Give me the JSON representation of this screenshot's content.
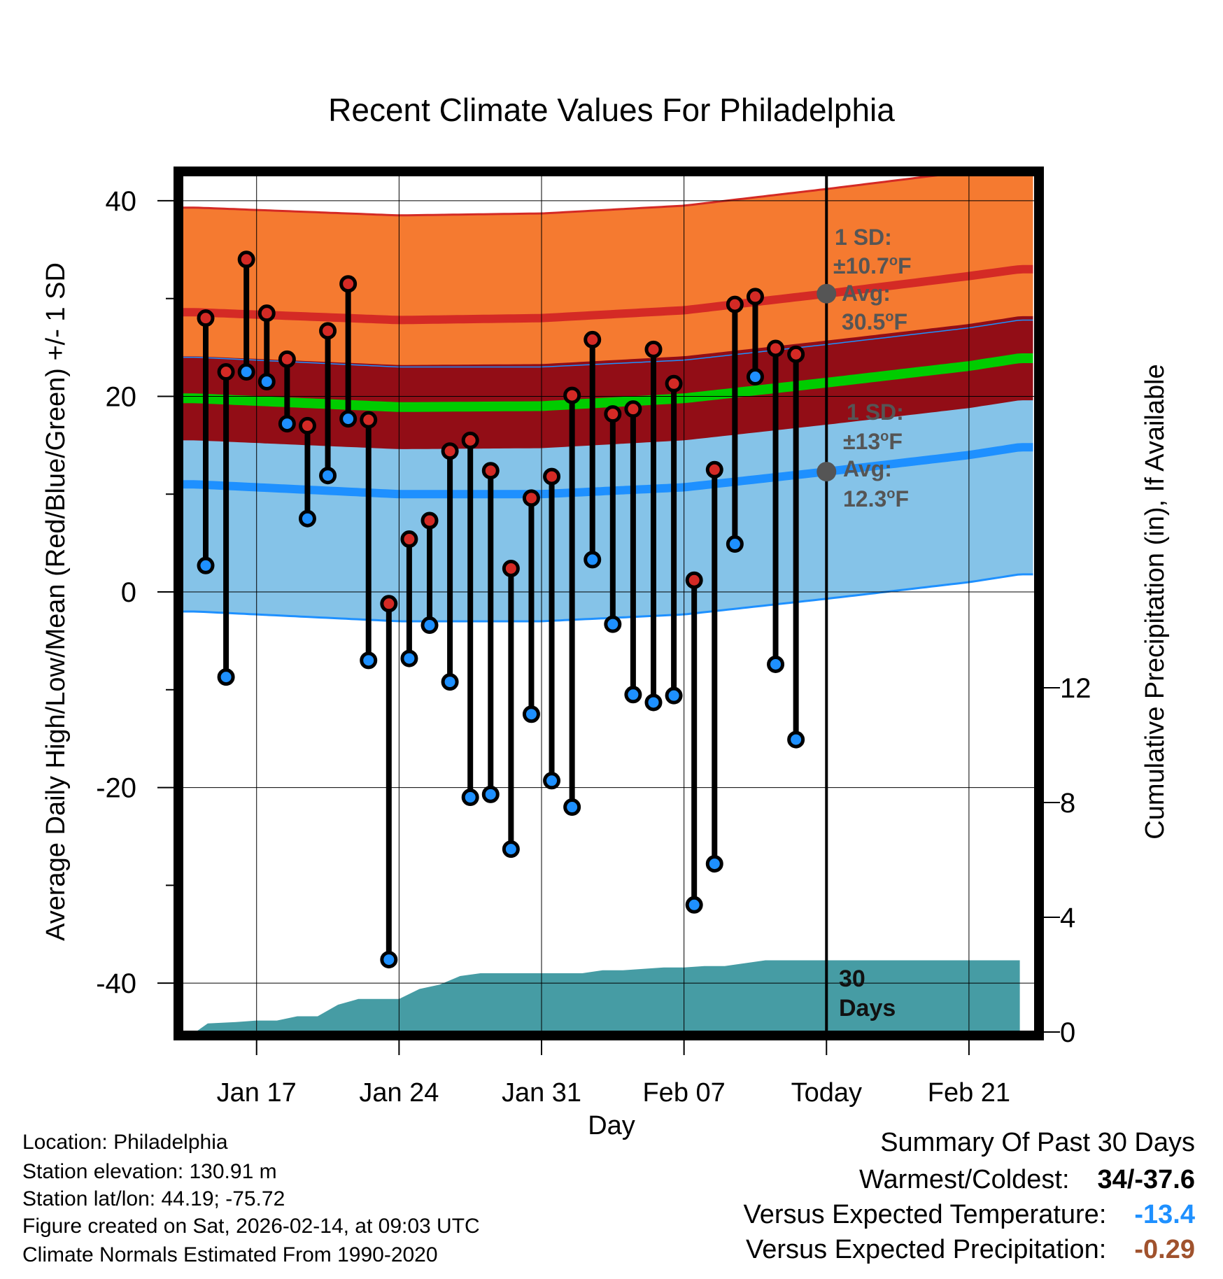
{
  "chart_data": {
    "type": "line",
    "title": "Recent Climate Values For Philadelphia",
    "xlabel": "Day",
    "ylabel": "Average Daily High/Low/Mean (Red/Blue/Green) +/- 1 SD",
    "y2label": "Cumulative Precipitation (in), If Available",
    "xlim": [
      -0.6,
      41.2
    ],
    "ylim": [
      -45,
      43
    ],
    "y2lim": [
      0,
      30
    ],
    "x_ticks": [
      {
        "x": 3,
        "label": "Jan 17"
      },
      {
        "x": 10,
        "label": "Jan 24"
      },
      {
        "x": 17,
        "label": "Jan 31"
      },
      {
        "x": 24,
        "label": "Feb 07"
      },
      {
        "x": 31,
        "label": "Today"
      },
      {
        "x": 38,
        "label": "Feb 21"
      }
    ],
    "y_ticks": [
      40,
      20,
      0,
      -20,
      -40
    ],
    "y2_ticks": [
      0,
      4,
      8,
      12
    ],
    "grid": true,
    "today_x": 31,
    "daily_high": [
      28.0,
      22.5,
      34.0,
      28.5,
      23.8,
      17.0,
      26.7,
      31.5,
      17.6,
      -1.2,
      5.4,
      7.3,
      14.4,
      15.5,
      12.4,
      2.4,
      9.6,
      11.8,
      20.1,
      25.8,
      18.2,
      18.7,
      24.8,
      21.3,
      1.2,
      12.5,
      29.4,
      30.2,
      24.9,
      24.3
    ],
    "daily_low": [
      2.7,
      -8.7,
      22.5,
      21.5,
      17.2,
      7.5,
      11.9,
      17.7,
      -7.0,
      -37.6,
      -6.8,
      -3.4,
      -9.2,
      -21.0,
      -20.7,
      -26.3,
      -12.5,
      -19.3,
      -22.0,
      3.3,
      -3.3,
      -10.5,
      -11.3,
      -10.6,
      -32.0,
      -27.8,
      4.9,
      22.0,
      -7.4,
      -15.1
    ],
    "normal_high": [
      {
        "x": 0,
        "y": 28.6
      },
      {
        "x": 10,
        "y": 27.8
      },
      {
        "x": 17,
        "y": 28.0
      },
      {
        "x": 24,
        "y": 28.8
      },
      {
        "x": 31,
        "y": 30.5
      },
      {
        "x": 38,
        "y": 32.3
      },
      {
        "x": 40.5,
        "y": 33.0
      }
    ],
    "normal_low": [
      {
        "x": 0,
        "y": 11.0
      },
      {
        "x": 10,
        "y": 10.0
      },
      {
        "x": 17,
        "y": 10.0
      },
      {
        "x": 24,
        "y": 10.7
      },
      {
        "x": 31,
        "y": 12.3
      },
      {
        "x": 38,
        "y": 14.0
      },
      {
        "x": 40.5,
        "y": 14.8
      }
    ],
    "normal_mean": [
      {
        "x": 0,
        "y": 19.8
      },
      {
        "x": 10,
        "y": 18.9
      },
      {
        "x": 17,
        "y": 19.0
      },
      {
        "x": 24,
        "y": 19.8
      },
      {
        "x": 31,
        "y": 21.4
      },
      {
        "x": 38,
        "y": 23.1
      },
      {
        "x": 40.5,
        "y": 23.9
      }
    ],
    "sd_high": 10.7,
    "sd_low": 13.0,
    "sd_mean": 1.0,
    "cumulative_precip": [
      {
        "x": 0,
        "y": 0.0
      },
      {
        "x": 0.6,
        "y": 0.3
      },
      {
        "x": 2,
        "y": 0.35
      },
      {
        "x": 3,
        "y": 0.4
      },
      {
        "x": 4,
        "y": 0.4
      },
      {
        "x": 5,
        "y": 0.55
      },
      {
        "x": 6,
        "y": 0.55
      },
      {
        "x": 7,
        "y": 0.95
      },
      {
        "x": 8,
        "y": 1.15
      },
      {
        "x": 9,
        "y": 1.15
      },
      {
        "x": 10,
        "y": 1.15
      },
      {
        "x": 11,
        "y": 1.5
      },
      {
        "x": 12,
        "y": 1.65
      },
      {
        "x": 13,
        "y": 1.95
      },
      {
        "x": 14,
        "y": 2.05
      },
      {
        "x": 15,
        "y": 2.05
      },
      {
        "x": 16,
        "y": 2.05
      },
      {
        "x": 17,
        "y": 2.05
      },
      {
        "x": 18,
        "y": 2.05
      },
      {
        "x": 19,
        "y": 2.05
      },
      {
        "x": 20,
        "y": 2.15
      },
      {
        "x": 21,
        "y": 2.15
      },
      {
        "x": 22,
        "y": 2.2
      },
      {
        "x": 23,
        "y": 2.25
      },
      {
        "x": 24,
        "y": 2.25
      },
      {
        "x": 25,
        "y": 2.3
      },
      {
        "x": 26,
        "y": 2.3
      },
      {
        "x": 27,
        "y": 2.4
      },
      {
        "x": 28,
        "y": 2.5
      },
      {
        "x": 29,
        "y": 2.5
      },
      {
        "x": 30,
        "y": 2.5
      },
      {
        "x": 31,
        "y": 2.5
      },
      {
        "x": 40.5,
        "y": 2.5
      }
    ],
    "annotations": {
      "high_sd_line1": "1 SD:",
      "high_sd_line2": "±10.7",
      "high_avg_line1": "Avg:",
      "high_avg_line2": "30.5",
      "low_sd_line1": "1 SD:",
      "low_sd_line2": "±13",
      "low_avg_line1": "Avg:",
      "low_avg_line2": "12.3",
      "deg_sup": "o",
      "deg_unit": "F",
      "days_line1": "30",
      "days_line2": "Days"
    },
    "colors": {
      "high_band": "#f57a30",
      "high_line": "#d42a25",
      "mean_band": "#920d16",
      "mean_line": "#00cc00",
      "low_band": "#85c3e8",
      "low_line": "#1e90ff",
      "precip": "#469ca4",
      "annotation": "#555555"
    }
  },
  "info": {
    "location": "Location: Philadelphia",
    "elevation": "Station elevation: 130.91 m",
    "latlon": "Station lat/lon: 44.19; -75.72",
    "created": "Figure created on Sat, 2026-02-14, at 09:03 UTC",
    "normals": "Climate Normals Estimated From 1990-2020"
  },
  "summary": {
    "title": "Summary Of Past 30 Days",
    "warm_label": "Warmest/Coldest:",
    "warm_value": "34/-37.6",
    "temp_label": "Versus Expected Temperature:",
    "temp_value": "-13.4",
    "temp_color": "#1e90ff",
    "precip_label": "Versus Expected Precipitation:",
    "precip_value": "-0.29",
    "precip_color": "#a0522d"
  }
}
